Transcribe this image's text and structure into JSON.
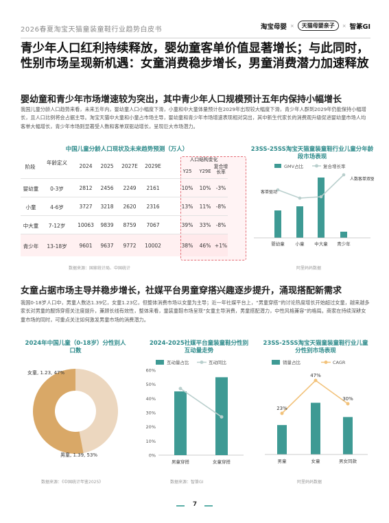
{
  "header": {
    "report_title": "2026春夏淘宝天猫童装童鞋行业趋势白皮书",
    "logo_taobao": "淘宝母婴",
    "logo_tmall": "天猫母婴亲子",
    "logo_zhiqu": "智篆GI",
    "logo_sep": "×"
  },
  "headline": "青少年人口红利持续释放，婴幼童客单价值显著增长；与此同时，性别市场呈现新机遇：女童消费稳步增长，男童消费潜力加速释放",
  "section1": {
    "title": "婴幼童和青少年市场增速较为突出，其中青少年人口规模预计五年内保持小幅增长",
    "paragraph": "我国儿童分龄人口趋势来看，未来五年内，婴幼童人口小幅度下滑，小童和中大童体量预计在2029年出现较大幅度下滑，青少年人群到2029年仍能保持小幅增长，且人口比例将会占据主导。淘宝天猫中大童和小童占市场主导，婴幼童和青少年市场增速表现相对突出，其中新生代家长的消费观升级促进婴幼童市场人均客单大幅增长，青少年市场则显著受人数和客单双驱动增长，呈现巨大市场潜力。"
  },
  "table": {
    "title": "中国儿童分龄人口现状及未来趋势预测（万人）",
    "headers": {
      "stage": "阶段",
      "age": "年龄定义",
      "y2024": "2024",
      "y2025": "2025",
      "y2027": "2027E",
      "y2029": "2029E",
      "group": "人口结构变化",
      "y25": "Y25",
      "y29": "Y29E",
      "cagr": "复合增长率"
    },
    "rows": [
      {
        "stage": "婴幼童",
        "age": "0-3岁",
        "v2024": "2812",
        "v2025": "2456",
        "v2027": "2249",
        "v2029": "2161",
        "y25": "10%",
        "y29": "10%",
        "cagr": "-3%"
      },
      {
        "stage": "小童",
        "age": "4-6岁",
        "v2024": "3727",
        "v2025": "3218",
        "v2027": "2620",
        "v2029": "2316",
        "y25": "13%",
        "y29": "11%",
        "cagr": "-8%"
      },
      {
        "stage": "中大童",
        "age": "7-12岁",
        "v2024": "10063",
        "v2025": "9839",
        "v2027": "8759",
        "v2029": "7067",
        "y25": "39%",
        "y29": "33%",
        "cagr": "-8%"
      },
      {
        "stage": "青少年",
        "age": "13-18岁",
        "v2024": "9601",
        "v2025": "9637",
        "v2027": "9772",
        "v2029": "10002",
        "y25": "38%",
        "y29": "46%",
        "cagr": "+1%"
      }
    ],
    "source": "数据来源：国家统计局、中国统计"
  },
  "chart1_meta": {
    "title": "23SS-25SS淘宝天猫童装童鞋行业儿童分年龄段市场表现",
    "legend_bar": "GMV占比",
    "legend_line": "复合增长率",
    "annot_left": "客单驱动",
    "annot_right": "人数客单双驱动",
    "source": "阿里妈妈数据"
  },
  "section2": {
    "title": "女童占据市场主导并稳步增长，社媒平台男童穿搭兴趣逐步提升，涌现搭配新需求",
    "paragraph": "我国0-18岁人口中，男童人数达1.39亿，女童1.23亿，但整体消费市场以女童为主导；近一年社媒平台上，“男童穿搭”的讨论热度增长开始超过女童，越来越多家长对男童的服饰穿搭关注度提升，兼顾长线有效性，整体来看，童装童鞋市场呈现“女童主导消费，男童搭配潜力，中性风格兼容”的格局。商家在持续深耕女童市场的同时，可重点关注如何激发男童市场的消费潜力。"
  },
  "chart2_meta": {
    "title": "2024年中国儿童（0-18岁）分性别人口数",
    "source": "数据来源：《中国统计年鉴2025》"
  },
  "chart3_meta": {
    "title": "2024-2025社媒平台童装童鞋分性别互动量走势",
    "legend_bar": "互动量占比",
    "legend_line": "互动同比",
    "source": "数据来源：智篆GI"
  },
  "chart4_meta": {
    "title": "23SS-25SS淘宝天猫童装童鞋行业儿童分性别市场表现",
    "legend_bar": "销量占比",
    "legend_line": "CAGR",
    "source": "阿里妈妈数据"
  },
  "chart_data": [
    {
      "type": "bar",
      "title": "23SS-25SS淘宝天猫童装童鞋行业儿童分年龄段市场表现",
      "categories": [
        "婴幼童",
        "小童",
        "中大童",
        "青少年"
      ],
      "series": [
        {
          "name": "GMV占比",
          "values": [
            0.4,
            0.46,
            0.88,
            0.09
          ]
        },
        {
          "name": "复合增长率",
          "values": [
            0.7,
            0.58,
            0.6,
            0.92
          ]
        }
      ]
    },
    {
      "type": "pie",
      "title": "2024年中国儿童（0-18岁）分性别人口数",
      "labels": [
        "女童, 1.23, 47%",
        "男童, 1.39, 53%"
      ],
      "values": [
        47,
        53
      ],
      "colors": [
        "#ecd7bf",
        "#d9a867"
      ]
    },
    {
      "type": "bar",
      "title": "2024-2025社媒平台童装童鞋分性别互动量走势",
      "categories": [
        "男童穿搭",
        "女童穿搭"
      ],
      "ylim": [
        0,
        60
      ],
      "yticks": [
        "0%",
        "10%",
        "20%",
        "30%",
        "40%",
        "50%",
        "60%"
      ],
      "series": [
        {
          "name": "互动量占比",
          "values": [
            45,
            55
          ]
        },
        {
          "name": "互动同比",
          "values": [
            47,
            27
          ]
        }
      ]
    },
    {
      "type": "bar",
      "title": "23SS-25SS淘宝天猫童装童鞋行业儿童分性别市场表现",
      "categories": [
        "男童",
        "女童",
        "男女同款"
      ],
      "series": [
        {
          "name": "销量占比",
          "values": [
            0.33,
            0.58,
            0.42
          ]
        },
        {
          "name": "CAGR",
          "values": [
            23,
            47,
            30
          ],
          "labels": [
            "23%",
            "47%",
            "30%"
          ]
        }
      ]
    }
  ],
  "footer": {
    "page_number": "7"
  },
  "colors": {
    "accent_teal": "#3e9a94",
    "line_gray": "#b9cfcd",
    "pink": "#e36b74",
    "tan": "#d9a867",
    "beige": "#ecd7bf",
    "gold_line": "#f2c27a"
  }
}
